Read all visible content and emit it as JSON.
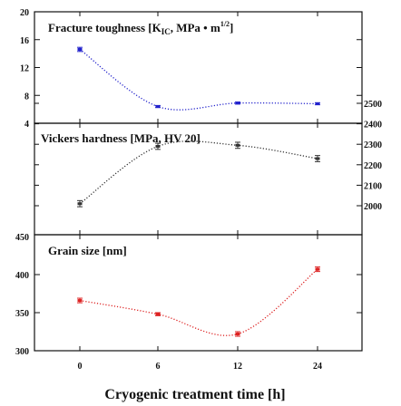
{
  "chart_data": [
    {
      "type": "line",
      "title": "Fracture toughness [K",
      "title_sub": "IC",
      "title_rest": ", MPa • m",
      "title_sup": "1/2",
      "title_end": "]",
      "x": [
        0,
        6,
        12,
        24
      ],
      "x_tick_labels": [
        "0",
        "6",
        "12",
        "24"
      ],
      "values": [
        14.6,
        6.4,
        6.9,
        6.8
      ],
      "errors": [
        0.3,
        0.15,
        0.15,
        0.15
      ],
      "y_ticks": [
        4,
        8,
        12,
        16,
        20
      ],
      "y_tick_labels": [
        "4",
        "8",
        "12",
        "16",
        "20"
      ],
      "ylim": [
        4,
        20
      ],
      "y_axis_side": "left",
      "color": "#2222cc"
    },
    {
      "type": "line",
      "title": "Vickers hardness [MPa, HV 20]",
      "x": [
        0,
        6,
        12,
        24
      ],
      "x_tick_labels": [
        "0",
        "6",
        "12",
        "24"
      ],
      "values": [
        2010,
        2290,
        2295,
        2230
      ],
      "errors": [
        15,
        15,
        15,
        15
      ],
      "y_ticks": [
        2000,
        2100,
        2200,
        2300,
        2400,
        2500
      ],
      "y_tick_labels": [
        "2000",
        "2100",
        "2200",
        "2300",
        "2400",
        "2500"
      ],
      "ylim": [
        1970,
        2500
      ],
      "y_axis_side": "right",
      "color": "#333333"
    },
    {
      "type": "line",
      "title": "Grain size [nm]",
      "x": [
        0,
        6,
        12,
        24
      ],
      "x_tick_labels": [
        "0",
        "6",
        "12",
        "24"
      ],
      "values": [
        366,
        348,
        322,
        407
      ],
      "errors": [
        3,
        2,
        3,
        3
      ],
      "y_ticks": [
        300,
        350,
        400,
        450
      ],
      "y_tick_labels": [
        "300",
        "350",
        "400",
        "450"
      ],
      "ylim": [
        300,
        450
      ],
      "y_axis_side": "left",
      "color": "#dd2222"
    }
  ],
  "xlabel": "Cryogenic treatment time [h]"
}
